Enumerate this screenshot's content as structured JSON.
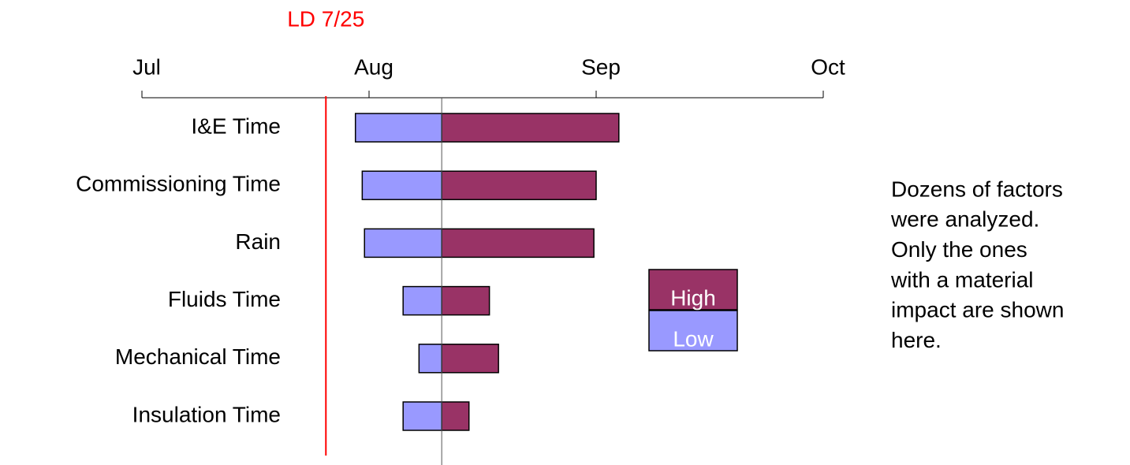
{
  "chart_data": {
    "type": "tornado",
    "categories": [
      "I&E Time",
      "Commissioning Time",
      "Rain",
      "Fluids Time",
      "Mechanical Time",
      "Insulation Time"
    ],
    "base": 8.32,
    "series": [
      {
        "name": "High",
        "color": "#993366",
        "values": [
          9.1,
          9.0,
          8.99,
          8.53,
          8.57,
          8.44
        ]
      },
      {
        "name": "Low",
        "color": "#9999ff",
        "values": [
          7.94,
          7.97,
          7.98,
          8.15,
          8.22,
          8.15
        ]
      }
    ],
    "xlim": [
      7,
      10
    ],
    "xticks": [
      {
        "value": 7,
        "label": "Jul"
      },
      {
        "value": 8,
        "label": "Aug"
      },
      {
        "value": 9,
        "label": "Sep"
      },
      {
        "value": 10,
        "label": "Oct"
      }
    ],
    "reference_line": {
      "label": "LD 7/25",
      "value": 7.81,
      "color": "#ff0000"
    },
    "note": [
      "Dozens of factors",
      "were analyzed.",
      "Only the ones",
      "with a material",
      "impact are shown",
      "here."
    ]
  }
}
